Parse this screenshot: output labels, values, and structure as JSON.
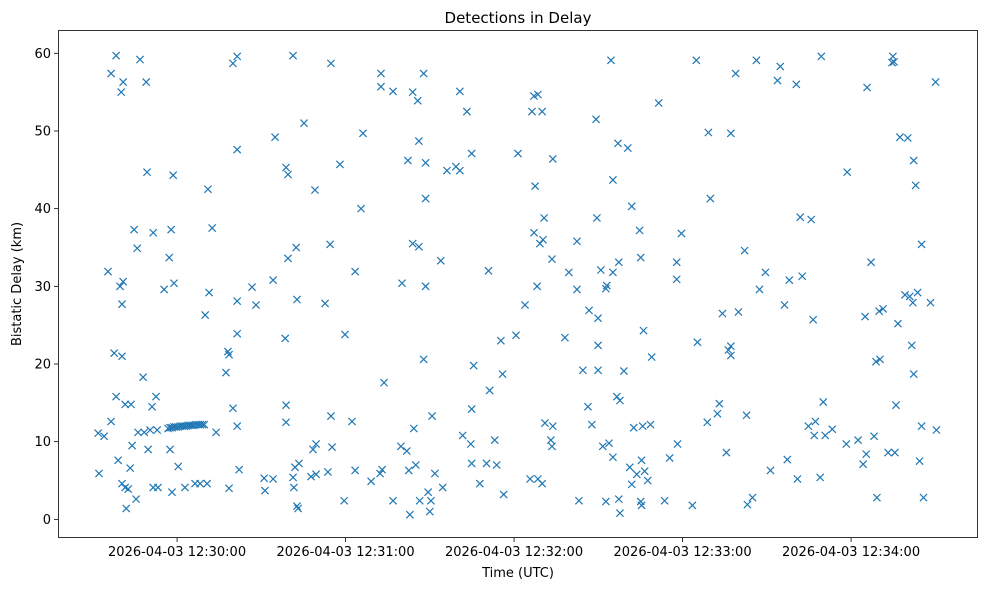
{
  "chart_data": {
    "type": "scatter",
    "title": "Detections in Delay",
    "xlabel": "Time (UTC)",
    "ylabel": "Bistatic Delay (km)",
    "x_units": "seconds since 2026-04-03 12:30:00 UTC",
    "xlim": [
      -42.4,
      285.2
    ],
    "ylim": [
      -2.4,
      63.0
    ],
    "x_ticks": [
      {
        "value": 0,
        "label": "2026-04-03 12:30:00"
      },
      {
        "value": 60,
        "label": "2026-04-03 12:31:00"
      },
      {
        "value": 120,
        "label": "2026-04-03 12:32:00"
      },
      {
        "value": 180,
        "label": "2026-04-03 12:33:00"
      },
      {
        "value": 240,
        "label": "2026-04-03 12:34:00"
      }
    ],
    "y_ticks": [
      {
        "value": 0,
        "label": "0"
      },
      {
        "value": 10,
        "label": "10"
      },
      {
        "value": 20,
        "label": "20"
      },
      {
        "value": 30,
        "label": "30"
      },
      {
        "value": 40,
        "label": "40"
      },
      {
        "value": 50,
        "label": "50"
      },
      {
        "value": 60,
        "label": "60"
      }
    ],
    "grid": false,
    "marker": "x",
    "color": "#1f77b4",
    "points": [
      [
        -28.1,
        11.1
      ],
      [
        -27.8,
        5.9
      ],
      [
        -26.0,
        10.7
      ],
      [
        -24.6,
        31.9
      ],
      [
        -23.5,
        57.4
      ],
      [
        -23.5,
        12.6
      ],
      [
        -22.4,
        21.4
      ],
      [
        -21.7,
        59.7
      ],
      [
        -21.7,
        15.8
      ],
      [
        -21.0,
        7.6
      ],
      [
        -20.3,
        30.0
      ],
      [
        -19.9,
        55.0
      ],
      [
        -19.6,
        27.7
      ],
      [
        -19.6,
        21.0
      ],
      [
        -19.2,
        30.6
      ],
      [
        -19.2,
        56.3
      ],
      [
        -19.6,
        4.6
      ],
      [
        -18.5,
        4.1
      ],
      [
        -18.5,
        14.8
      ],
      [
        -18.1,
        1.4
      ],
      [
        -17.4,
        3.9
      ],
      [
        -16.7,
        6.6
      ],
      [
        -16.4,
        14.8
      ],
      [
        -16.0,
        9.5
      ],
      [
        -15.3,
        37.3
      ],
      [
        -14.6,
        2.6
      ],
      [
        -14.2,
        34.9
      ],
      [
        -13.9,
        11.2
      ],
      [
        -13.2,
        59.2
      ],
      [
        -12.1,
        18.3
      ],
      [
        -11.7,
        11.2
      ],
      [
        -11.0,
        56.3
      ],
      [
        -10.7,
        44.7
      ],
      [
        -10.3,
        9.0
      ],
      [
        -9.6,
        11.5
      ],
      [
        -8.9,
        14.5
      ],
      [
        -8.5,
        36.9
      ],
      [
        -8.5,
        4.1
      ],
      [
        -7.5,
        15.8
      ],
      [
        -7.1,
        11.5
      ],
      [
        -6.8,
        4.1
      ],
      [
        -4.6,
        29.6
      ],
      [
        -2.8,
        33.7
      ],
      [
        -2.5,
        9.0
      ],
      [
        -2.1,
        37.3
      ],
      [
        -1.8,
        3.5
      ],
      [
        -1.4,
        44.3
      ],
      [
        -1.1,
        30.4
      ],
      [
        0.4,
        6.8
      ],
      [
        2.8,
        4.1
      ],
      [
        -3.2,
        11.7
      ],
      [
        -2.5,
        11.8
      ],
      [
        -1.8,
        11.8
      ],
      [
        -1.1,
        11.9
      ],
      [
        -0.4,
        11.9
      ],
      [
        0.4,
        11.9
      ],
      [
        1.1,
        12.0
      ],
      [
        1.8,
        12.0
      ],
      [
        2.5,
        12.0
      ],
      [
        3.2,
        12.0
      ],
      [
        3.9,
        12.1
      ],
      [
        4.6,
        12.1
      ],
      [
        5.3,
        12.1
      ],
      [
        6.0,
        12.1
      ],
      [
        6.7,
        12.2
      ],
      [
        7.5,
        12.2
      ],
      [
        8.2,
        12.2
      ],
      [
        9.0,
        12.2
      ],
      [
        9.7,
        12.2
      ],
      [
        6.4,
        4.6
      ],
      [
        8.2,
        4.6
      ],
      [
        10.0,
        26.3
      ],
      [
        10.7,
        4.6
      ],
      [
        11.0,
        42.5
      ],
      [
        11.4,
        29.2
      ],
      [
        12.5,
        37.5
      ],
      [
        13.9,
        11.2
      ],
      [
        17.4,
        18.9
      ],
      [
        18.1,
        21.6
      ],
      [
        18.5,
        21.2
      ],
      [
        18.5,
        4.0
      ],
      [
        19.9,
        58.7
      ],
      [
        19.9,
        14.3
      ],
      [
        21.4,
        59.6
      ],
      [
        21.4,
        47.6
      ],
      [
        21.4,
        28.1
      ],
      [
        21.4,
        23.9
      ],
      [
        21.4,
        12.0
      ],
      [
        22.1,
        6.4
      ],
      [
        26.7,
        29.9
      ],
      [
        28.1,
        27.6
      ],
      [
        31.0,
        5.3
      ],
      [
        31.3,
        3.7
      ],
      [
        34.2,
        5.2
      ],
      [
        34.2,
        30.8
      ],
      [
        34.9,
        49.2
      ],
      [
        38.5,
        23.3
      ],
      [
        38.8,
        14.7
      ],
      [
        38.8,
        12.5
      ],
      [
        38.8,
        45.3
      ],
      [
        39.5,
        44.4
      ],
      [
        39.5,
        33.6
      ],
      [
        41.3,
        59.7
      ],
      [
        41.3,
        5.4
      ],
      [
        41.6,
        4.1
      ],
      [
        42.0,
        6.7
      ],
      [
        42.4,
        35.0
      ],
      [
        42.7,
        28.3
      ],
      [
        42.7,
        1.7
      ],
      [
        43.1,
        1.4
      ],
      [
        43.4,
        7.2
      ],
      [
        45.2,
        51.0
      ],
      [
        47.7,
        5.5
      ],
      [
        48.4,
        9.0
      ],
      [
        49.1,
        42.4
      ],
      [
        49.5,
        9.7
      ],
      [
        49.5,
        5.8
      ],
      [
        52.7,
        27.8
      ],
      [
        53.7,
        6.1
      ],
      [
        54.5,
        35.4
      ],
      [
        54.8,
        58.7
      ],
      [
        54.8,
        13.3
      ],
      [
        55.2,
        9.3
      ],
      [
        58.0,
        45.7
      ],
      [
        59.5,
        2.4
      ],
      [
        59.8,
        23.8
      ],
      [
        62.3,
        12.6
      ],
      [
        63.4,
        31.9
      ],
      [
        63.4,
        6.3
      ],
      [
        66.2,
        49.7
      ],
      [
        65.5,
        40.0
      ],
      [
        69.1,
        4.9
      ],
      [
        72.3,
        5.9
      ],
      [
        72.6,
        57.4
      ],
      [
        72.6,
        55.7
      ],
      [
        73.0,
        6.4
      ],
      [
        73.7,
        17.6
      ],
      [
        76.9,
        55.1
      ],
      [
        76.9,
        2.4
      ],
      [
        79.7,
        9.4
      ],
      [
        80.1,
        30.4
      ],
      [
        81.8,
        8.8
      ],
      [
        82.2,
        46.2
      ],
      [
        82.5,
        6.3
      ],
      [
        82.9,
        0.6
      ],
      [
        83.9,
        55.0
      ],
      [
        83.9,
        35.5
      ],
      [
        84.3,
        11.7
      ],
      [
        85.0,
        7.0
      ],
      [
        85.7,
        53.9
      ],
      [
        86.1,
        48.7
      ],
      [
        86.1,
        35.1
      ],
      [
        86.4,
        2.4
      ],
      [
        87.8,
        57.4
      ],
      [
        87.8,
        20.6
      ],
      [
        88.5,
        45.9
      ],
      [
        88.5,
        41.3
      ],
      [
        88.5,
        30.0
      ],
      [
        89.4,
        3.5
      ],
      [
        90.0,
        1.0
      ],
      [
        90.4,
        2.4
      ],
      [
        90.8,
        13.3
      ],
      [
        91.8,
        5.9
      ],
      [
        93.9,
        33.3
      ],
      [
        94.6,
        4.1
      ],
      [
        96.1,
        44.9
      ],
      [
        99.3,
        45.4
      ],
      [
        100.7,
        55.1
      ],
      [
        100.7,
        44.9
      ],
      [
        101.7,
        10.8
      ],
      [
        103.2,
        52.5
      ],
      [
        104.6,
        9.7
      ],
      [
        104.9,
        47.1
      ],
      [
        104.9,
        14.2
      ],
      [
        104.9,
        7.2
      ],
      [
        105.6,
        19.8
      ],
      [
        107.8,
        4.6
      ],
      [
        110.2,
        7.2
      ],
      [
        110.9,
        32.0
      ],
      [
        111.3,
        16.6
      ],
      [
        113.1,
        10.2
      ],
      [
        113.8,
        7.0
      ],
      [
        115.3,
        23.0
      ],
      [
        115.9,
        18.7
      ],
      [
        116.3,
        3.2
      ],
      [
        120.7,
        23.7
      ],
      [
        121.4,
        47.1
      ],
      [
        123.9,
        27.6
      ],
      [
        125.7,
        5.2
      ],
      [
        126.4,
        52.5
      ],
      [
        127.1,
        54.5
      ],
      [
        127.1,
        36.9
      ],
      [
        127.5,
        42.9
      ],
      [
        128.2,
        30.0
      ],
      [
        128.5,
        5.2
      ],
      [
        128.5,
        54.7
      ],
      [
        129.2,
        35.5
      ],
      [
        130.0,
        52.5
      ],
      [
        130.0,
        4.6
      ],
      [
        130.3,
        36.0
      ],
      [
        130.7,
        38.8
      ],
      [
        131.0,
        12.4
      ],
      [
        133.1,
        10.2
      ],
      [
        133.5,
        9.4
      ],
      [
        133.5,
        33.5
      ],
      [
        133.8,
        12.0
      ],
      [
        133.8,
        46.4
      ],
      [
        138.1,
        23.4
      ],
      [
        139.5,
        31.8
      ],
      [
        142.4,
        35.8
      ],
      [
        142.4,
        29.6
      ],
      [
        143.1,
        2.4
      ],
      [
        144.5,
        19.2
      ],
      [
        146.3,
        14.5
      ],
      [
        146.7,
        26.9
      ],
      [
        147.7,
        12.2
      ],
      [
        149.2,
        51.5
      ],
      [
        149.5,
        38.8
      ],
      [
        149.9,
        25.9
      ],
      [
        149.9,
        22.4
      ],
      [
        149.9,
        19.2
      ],
      [
        150.9,
        32.1
      ],
      [
        151.6,
        9.4
      ],
      [
        152.7,
        29.7
      ],
      [
        152.7,
        2.3
      ],
      [
        153.0,
        30.1
      ],
      [
        153.8,
        9.8
      ],
      [
        154.5,
        59.1
      ],
      [
        155.2,
        43.7
      ],
      [
        155.2,
        31.8
      ],
      [
        155.2,
        8.0
      ],
      [
        156.6,
        15.8
      ],
      [
        157.0,
        48.4
      ],
      [
        157.3,
        33.1
      ],
      [
        157.3,
        2.6
      ],
      [
        157.7,
        15.3
      ],
      [
        157.7,
        0.8
      ],
      [
        159.1,
        19.1
      ],
      [
        160.5,
        47.8
      ],
      [
        161.2,
        6.7
      ],
      [
        161.9,
        40.3
      ],
      [
        161.9,
        4.5
      ],
      [
        162.6,
        11.8
      ],
      [
        163.7,
        5.8
      ],
      [
        164.7,
        37.2
      ],
      [
        165.1,
        33.7
      ],
      [
        165.1,
        2.3
      ],
      [
        165.4,
        1.8
      ],
      [
        165.4,
        7.6
      ],
      [
        165.8,
        12.0
      ],
      [
        166.1,
        24.3
      ],
      [
        166.5,
        6.2
      ],
      [
        167.6,
        5.0
      ],
      [
        168.6,
        12.2
      ],
      [
        169.0,
        20.9
      ],
      [
        171.5,
        53.6
      ],
      [
        173.6,
        2.4
      ],
      [
        175.4,
        7.9
      ],
      [
        177.9,
        33.1
      ],
      [
        177.9,
        30.9
      ],
      [
        178.2,
        9.7
      ],
      [
        179.6,
        36.8
      ],
      [
        183.5,
        1.8
      ],
      [
        184.9,
        59.1
      ],
      [
        185.3,
        22.8
      ],
      [
        188.8,
        12.5
      ],
      [
        189.2,
        49.8
      ],
      [
        189.9,
        41.3
      ],
      [
        192.4,
        13.6
      ],
      [
        193.1,
        14.9
      ],
      [
        194.2,
        26.5
      ],
      [
        195.6,
        8.6
      ],
      [
        196.3,
        21.8
      ],
      [
        197.2,
        49.7
      ],
      [
        197.2,
        22.3
      ],
      [
        197.2,
        21.1
      ],
      [
        198.9,
        57.4
      ],
      [
        199.9,
        26.7
      ],
      [
        202.1,
        34.6
      ],
      [
        202.8,
        13.4
      ],
      [
        203.1,
        1.9
      ],
      [
        204.9,
        2.8
      ],
      [
        206.3,
        59.1
      ],
      [
        207.4,
        29.6
      ],
      [
        209.5,
        31.8
      ],
      [
        211.3,
        6.3
      ],
      [
        213.8,
        56.5
      ],
      [
        214.8,
        58.3
      ],
      [
        216.3,
        27.6
      ],
      [
        217.3,
        7.7
      ],
      [
        218.0,
        30.8
      ],
      [
        220.5,
        56.0
      ],
      [
        220.9,
        5.2
      ],
      [
        221.9,
        38.9
      ],
      [
        222.6,
        31.3
      ],
      [
        224.8,
        12.0
      ],
      [
        225.8,
        38.6
      ],
      [
        226.5,
        25.7
      ],
      [
        226.9,
        10.8
      ],
      [
        227.3,
        12.6
      ],
      [
        229.0,
        5.4
      ],
      [
        229.4,
        59.6
      ],
      [
        230.1,
        15.1
      ],
      [
        230.8,
        10.8
      ],
      [
        233.3,
        11.6
      ],
      [
        238.3,
        9.7
      ],
      [
        238.6,
        44.7
      ],
      [
        242.5,
        10.2
      ],
      [
        244.3,
        7.1
      ],
      [
        245.0,
        26.1
      ],
      [
        245.4,
        8.4
      ],
      [
        245.7,
        55.6
      ],
      [
        247.1,
        33.1
      ],
      [
        248.2,
        10.7
      ],
      [
        248.9,
        20.3
      ],
      [
        249.2,
        2.8
      ],
      [
        250.0,
        26.8
      ],
      [
        250.3,
        20.6
      ],
      [
        251.4,
        27.1
      ],
      [
        253.2,
        8.6
      ],
      [
        254.6,
        58.8
      ],
      [
        254.9,
        59.6
      ],
      [
        255.3,
        58.9
      ],
      [
        255.6,
        8.6
      ],
      [
        256.0,
        14.7
      ],
      [
        256.7,
        25.2
      ],
      [
        257.4,
        49.2
      ],
      [
        259.2,
        28.9
      ],
      [
        260.2,
        49.1
      ],
      [
        260.9,
        28.7
      ],
      [
        261.6,
        22.4
      ],
      [
        262.0,
        27.9
      ],
      [
        262.3,
        46.2
      ],
      [
        262.3,
        18.7
      ],
      [
        263.0,
        43.0
      ],
      [
        263.7,
        29.2
      ],
      [
        264.4,
        7.5
      ],
      [
        265.1,
        35.4
      ],
      [
        265.1,
        12.0
      ],
      [
        265.8,
        2.8
      ],
      [
        268.3,
        27.9
      ],
      [
        270.1,
        56.3
      ],
      [
        270.4,
        11.5
      ]
    ]
  }
}
